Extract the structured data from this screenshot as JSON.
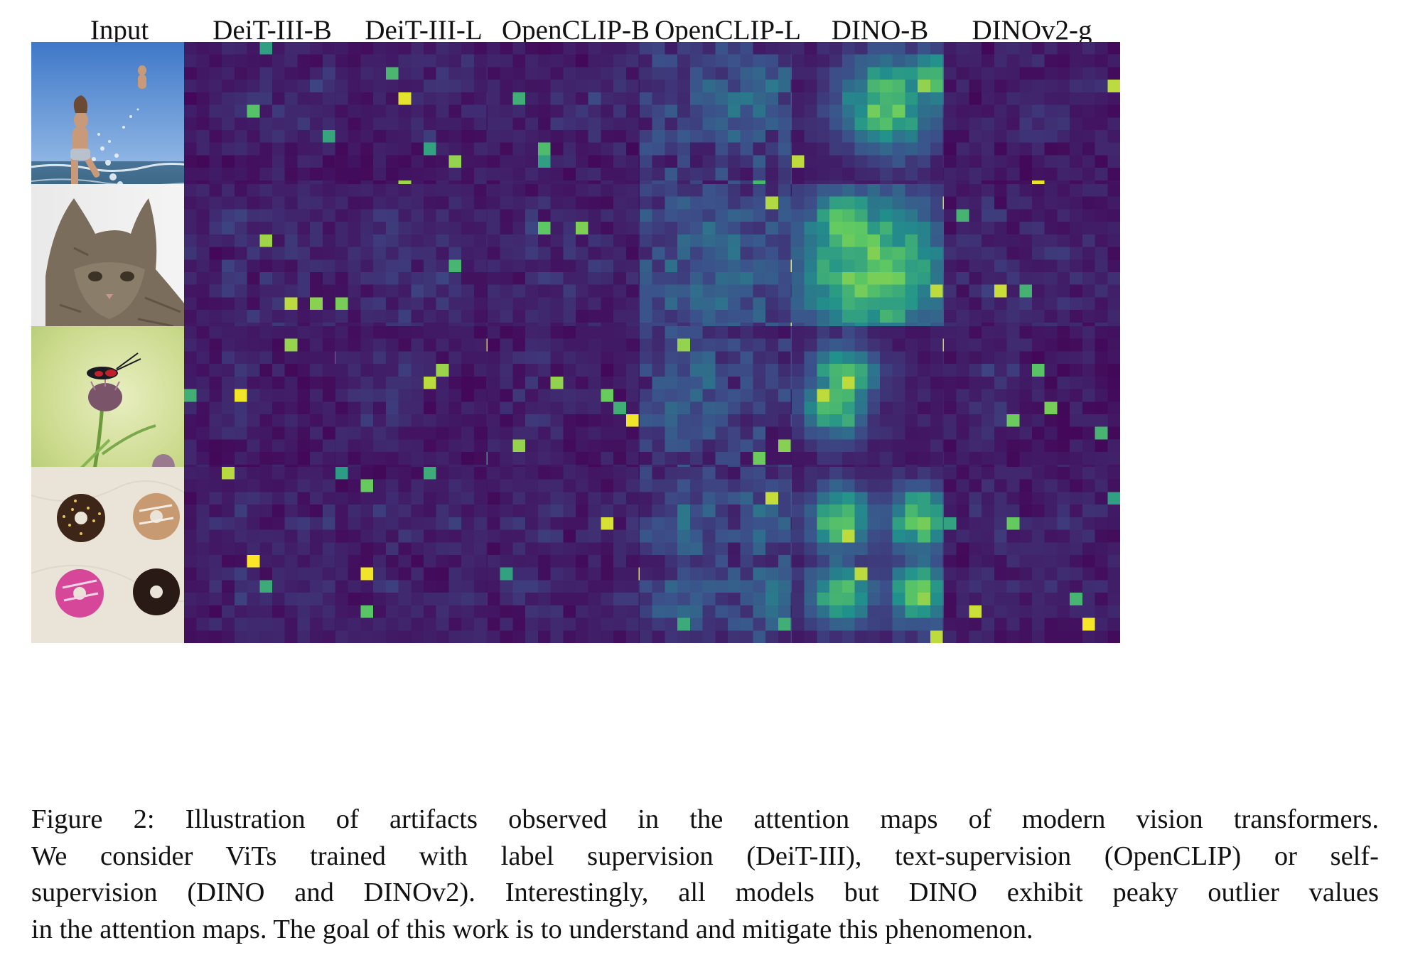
{
  "figure": {
    "column_headers": [
      "Input",
      "DeiT-III-B",
      "DeiT-III-L",
      "OpenCLIP-B",
      "OpenCLIP-L",
      "DINO-B",
      "DINOv2-g"
    ],
    "rows": [
      {
        "name": "child-splash",
        "input_icon": "photo-child-splashing-water"
      },
      {
        "name": "cat",
        "input_icon": "photo-cat"
      },
      {
        "name": "insect-flower",
        "input_icon": "photo-insect-on-thistle"
      },
      {
        "name": "donuts",
        "input_icon": "photo-four-donuts"
      }
    ],
    "colormap": "viridis",
    "attention_grid_size": 14,
    "caption_lines": [
      "Figure 2:  Illustration of artifacts observed in the attention maps of modern vision transformers.",
      "We consider ViTs trained with label supervision (DeiT-III), text-supervision (OpenCLIP) or self-",
      "supervision (DINO and DINOv2).  Interestingly, all models but DINO exhibit peaky outlier values",
      "in the attention maps. The goal of this work is to understand and mitigate this phenomenon."
    ],
    "colors": {
      "viridis_low": "#440154",
      "viridis_mid": "#21918c",
      "viridis_high": "#fde725"
    }
  }
}
